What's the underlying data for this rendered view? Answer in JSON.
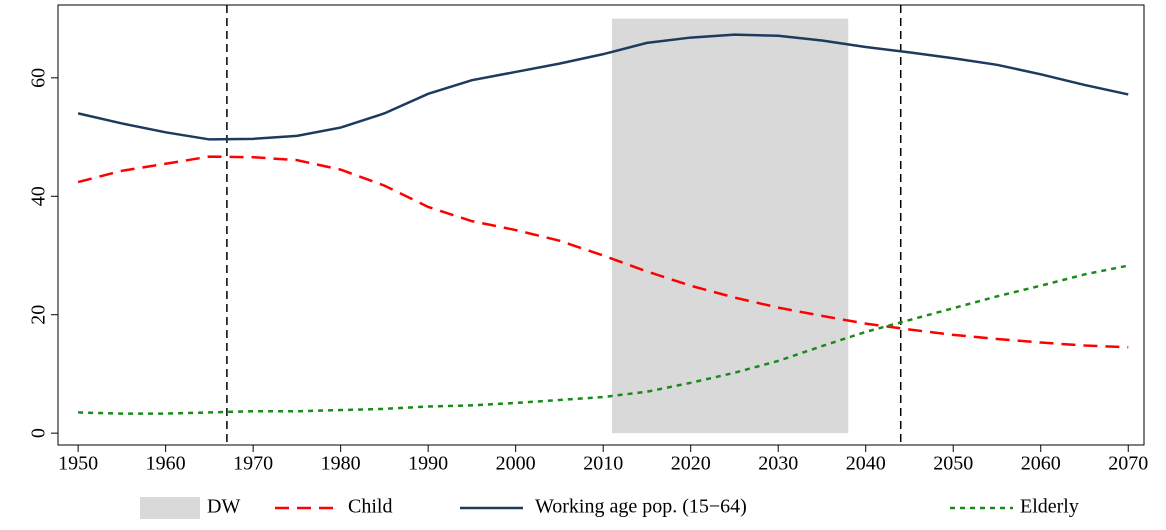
{
  "chart_data": {
    "type": "line",
    "x": [
      1950,
      1955,
      1960,
      1965,
      1970,
      1975,
      1980,
      1985,
      1990,
      1995,
      2000,
      2005,
      2010,
      2015,
      2020,
      2025,
      2030,
      2035,
      2040,
      2045,
      2050,
      2055,
      2060,
      2065,
      2070
    ],
    "series": [
      {
        "name": "Child",
        "color": "#ff0000",
        "dash": "14,8",
        "values": [
          42.4,
          44.3,
          45.5,
          46.7,
          46.6,
          46.1,
          44.5,
          41.8,
          38.2,
          35.8,
          34.3,
          32.5,
          30,
          27.3,
          24.9,
          22.9,
          21.2,
          19.8,
          18.5,
          17.5,
          16.6,
          15.9,
          15.3,
          14.8,
          14.5
        ]
      },
      {
        "name": "Working age pop. (15−64)",
        "color": "#1f3a5f",
        "dash": "none",
        "values": [
          54,
          52.3,
          50.8,
          49.6,
          49.7,
          50.2,
          51.6,
          54,
          57.3,
          59.6,
          61,
          62.4,
          64,
          65.9,
          66.8,
          67.3,
          67.1,
          66.3,
          65.2,
          64.3,
          63.3,
          62.2,
          60.6,
          58.8,
          57.2
        ]
      },
      {
        "name": "Elderly",
        "color": "#1a8a1a",
        "dash": "5,5",
        "values": [
          3.5,
          3.3,
          3.3,
          3.5,
          3.7,
          3.7,
          3.9,
          4.1,
          4.5,
          4.7,
          5.1,
          5.6,
          6.1,
          7,
          8.5,
          10.2,
          12.2,
          14.7,
          17.1,
          19.1,
          21.1,
          23.1,
          24.9,
          26.8,
          28.3
        ]
      }
    ],
    "shaded_region": {
      "name": "DW",
      "color": "#d9d9d9",
      "x0": 2011,
      "x1": 2038,
      "y0": 0,
      "y1": 70
    },
    "vlines": [
      1967,
      2044
    ],
    "xlim": [
      1947.7,
      2071.8
    ],
    "ylim": [
      -2,
      72.3
    ],
    "xticks": [
      1950,
      1960,
      1970,
      1980,
      1990,
      2000,
      2010,
      2020,
      2030,
      2040,
      2050,
      2060,
      2070
    ],
    "yticks": [
      0,
      20,
      40,
      60
    ]
  }
}
